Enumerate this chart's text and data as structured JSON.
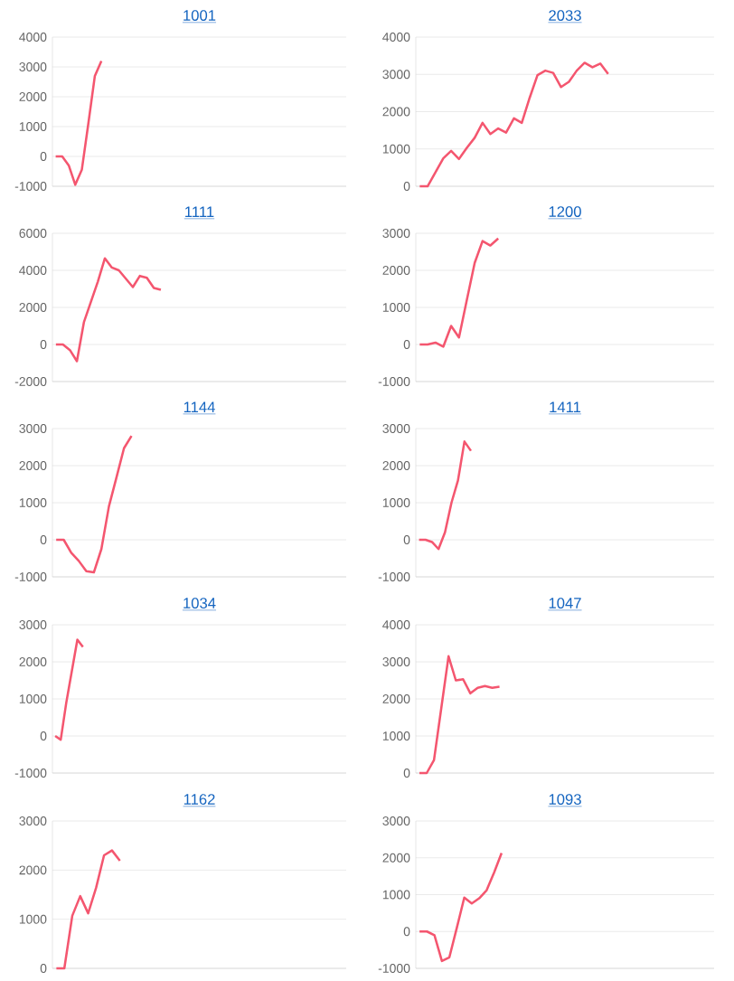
{
  "chart_data": [
    {
      "type": "line",
      "title": "1001",
      "grid": "y",
      "color": "#f4566f",
      "ylim": [
        -1000,
        4000
      ],
      "yticks": [
        -1000,
        0,
        1000,
        2000,
        3000,
        4000
      ],
      "categories": [
        null,
        null,
        null,
        null,
        null,
        null,
        null,
        null,
        null,
        null,
        null,
        null,
        null,
        null,
        null,
        null,
        null,
        null,
        null,
        null,
        null,
        null,
        null,
        null,
        null,
        null,
        null,
        null,
        null,
        null,
        null,
        null,
        null,
        null,
        null,
        null,
        null,
        null,
        null,
        null,
        null,
        null,
        null,
        null,
        null
      ],
      "values": [
        0,
        0,
        -300,
        -950,
        -450,
        1100,
        2700,
        3200,
        null,
        null,
        null,
        null,
        null,
        null,
        null,
        null,
        null,
        null,
        null,
        null,
        null,
        null,
        null,
        null,
        null,
        null,
        null,
        null,
        null,
        null,
        null,
        null,
        null,
        null,
        null,
        null,
        null,
        null,
        null,
        null,
        null,
        null,
        null,
        null,
        null
      ]
    },
    {
      "type": "line",
      "title": "2033",
      "grid": "y",
      "color": "#f4566f",
      "ylim": [
        0,
        4000
      ],
      "yticks": [
        0,
        1000,
        2000,
        3000,
        4000
      ],
      "categories": [
        null,
        null,
        null,
        null,
        null,
        null,
        null,
        null,
        null,
        null,
        null,
        null,
        null,
        null,
        null,
        null,
        null,
        null,
        null,
        null,
        null,
        null,
        null,
        null,
        null,
        null,
        null,
        null,
        null,
        null,
        null,
        null,
        null,
        null,
        null,
        null,
        null,
        null
      ],
      "values": [
        0,
        0,
        370,
        750,
        950,
        730,
        1030,
        1300,
        1700,
        1400,
        1550,
        1440,
        1820,
        1700,
        2370,
        2980,
        3100,
        3040,
        2660,
        2800,
        3100,
        3310,
        3190,
        3290,
        3010,
        null,
        null,
        null,
        null,
        null,
        null,
        null,
        null,
        null,
        null,
        null,
        null,
        null
      ]
    },
    {
      "type": "line",
      "title": "1111",
      "grid": "y",
      "color": "#f4566f",
      "ylim": [
        -2000,
        6000
      ],
      "yticks": [
        -2000,
        0,
        2000,
        4000,
        6000
      ],
      "categories": [
        null,
        null,
        null,
        null,
        null,
        null,
        null,
        null,
        null,
        null,
        null,
        null,
        null,
        null,
        null,
        null,
        null,
        null,
        null,
        null,
        null,
        null,
        null,
        null,
        null,
        null,
        null,
        null,
        null,
        null,
        null,
        null,
        null,
        null,
        null,
        null,
        null,
        null,
        null,
        null,
        null,
        null
      ],
      "values": [
        0,
        0,
        -300,
        -900,
        1200,
        2300,
        3400,
        4650,
        4150,
        4000,
        3550,
        3100,
        3700,
        3600,
        3050,
        2950,
        null,
        null,
        null,
        null,
        null,
        null,
        null,
        null,
        null,
        null,
        null,
        null,
        null,
        null,
        null,
        null,
        null,
        null,
        null,
        null,
        null,
        null,
        null,
        null,
        null,
        null
      ]
    },
    {
      "type": "line",
      "title": "1200",
      "grid": "y",
      "color": "#f4566f",
      "ylim": [
        -1000,
        3000
      ],
      "yticks": [
        -1000,
        0,
        1000,
        2000,
        3000
      ],
      "categories": [
        null,
        null,
        null,
        null,
        null,
        null,
        null,
        null,
        null,
        null,
        null,
        null,
        null,
        null,
        null,
        null,
        null,
        null,
        null,
        null,
        null,
        null,
        null,
        null,
        null,
        null,
        null,
        null,
        null,
        null,
        null,
        null,
        null,
        null,
        null,
        null,
        null,
        null
      ],
      "values": [
        0,
        0,
        50,
        -60,
        500,
        190,
        1200,
        2200,
        2790,
        2670,
        2860,
        null,
        null,
        null,
        null,
        null,
        null,
        null,
        null,
        null,
        null,
        null,
        null,
        null,
        null,
        null,
        null,
        null,
        null,
        null,
        null,
        null,
        null,
        null,
        null,
        null,
        null,
        null
      ]
    },
    {
      "type": "line",
      "title": "1144",
      "grid": "y",
      "color": "#f4566f",
      "ylim": [
        -1000,
        3000
      ],
      "yticks": [
        -1000,
        0,
        1000,
        2000,
        3000
      ],
      "categories": [
        null,
        null,
        null,
        null,
        null,
        null,
        null,
        null,
        null,
        null,
        null,
        null,
        null,
        null,
        null,
        null,
        null,
        null,
        null,
        null,
        null,
        null,
        null,
        null,
        null,
        null,
        null,
        null,
        null,
        null,
        null,
        null,
        null,
        null,
        null,
        null,
        null,
        null,
        null
      ],
      "values": [
        0,
        0,
        -350,
        -570,
        -850,
        -880,
        -250,
        900,
        1680,
        2470,
        2800,
        null,
        null,
        null,
        null,
        null,
        null,
        null,
        null,
        null,
        null,
        null,
        null,
        null,
        null,
        null,
        null,
        null,
        null,
        null,
        null,
        null,
        null,
        null,
        null,
        null,
        null,
        null,
        null
      ]
    },
    {
      "type": "line",
      "title": "1411",
      "grid": "y",
      "color": "#f4566f",
      "ylim": [
        -1000,
        3000
      ],
      "yticks": [
        -1000,
        0,
        1000,
        2000,
        3000
      ],
      "categories": [
        null,
        null,
        null,
        null,
        null,
        null,
        null,
        null,
        null,
        null,
        null,
        null,
        null,
        null,
        null,
        null,
        null,
        null,
        null,
        null,
        null,
        null,
        null,
        null,
        null,
        null,
        null,
        null,
        null,
        null,
        null,
        null,
        null,
        null,
        null,
        null,
        null,
        null,
        null,
        null,
        null,
        null,
        null,
        null,
        null,
        null
      ],
      "values": [
        0,
        0,
        -60,
        -250,
        200,
        1000,
        1600,
        2650,
        2400,
        null,
        null,
        null,
        null,
        null,
        null,
        null,
        null,
        null,
        null,
        null,
        null,
        null,
        null,
        null,
        null,
        null,
        null,
        null,
        null,
        null,
        null,
        null,
        null,
        null,
        null,
        null,
        null,
        null,
        null,
        null,
        null,
        null,
        null,
        null,
        null,
        null
      ]
    },
    {
      "type": "line",
      "title": "1034",
      "grid": "y",
      "color": "#f4566f",
      "ylim": [
        -1000,
        3000
      ],
      "yticks": [
        -1000,
        0,
        1000,
        2000,
        3000
      ],
      "categories": [
        null,
        null,
        null,
        null,
        null,
        null,
        null,
        null,
        null,
        null,
        null,
        null,
        null,
        null,
        null,
        null,
        null,
        null,
        null,
        null,
        null,
        null,
        null,
        null,
        null,
        null,
        null,
        null,
        null,
        null,
        null,
        null,
        null,
        null,
        null,
        null,
        null,
        null,
        null,
        null,
        null,
        null,
        null,
        null,
        null,
        null,
        null,
        null,
        null,
        null,
        null,
        null,
        null
      ],
      "values": [
        0,
        -100,
        900,
        1750,
        2600,
        2400,
        null,
        null,
        null,
        null,
        null,
        null,
        null,
        null,
        null,
        null,
        null,
        null,
        null,
        null,
        null,
        null,
        null,
        null,
        null,
        null,
        null,
        null,
        null,
        null,
        null,
        null,
        null,
        null,
        null,
        null,
        null,
        null,
        null,
        null,
        null,
        null,
        null,
        null,
        null,
        null,
        null,
        null,
        null,
        null,
        null,
        null,
        null
      ]
    },
    {
      "type": "line",
      "title": "1047",
      "grid": "y",
      "color": "#f4566f",
      "ylim": [
        0,
        4000
      ],
      "yticks": [
        0,
        1000,
        2000,
        3000,
        4000
      ],
      "categories": [
        null,
        null,
        null,
        null,
        null,
        null,
        null,
        null,
        null,
        null,
        null,
        null,
        null,
        null,
        null,
        null,
        null,
        null,
        null,
        null,
        null,
        null,
        null,
        null,
        null,
        null,
        null,
        null,
        null,
        null,
        null,
        null,
        null,
        null,
        null,
        null,
        null,
        null,
        null,
        null,
        null
      ],
      "values": [
        0,
        0,
        350,
        1750,
        3150,
        2500,
        2530,
        2150,
        2300,
        2350,
        2300,
        2330,
        null,
        null,
        null,
        null,
        null,
        null,
        null,
        null,
        null,
        null,
        null,
        null,
        null,
        null,
        null,
        null,
        null,
        null,
        null,
        null,
        null,
        null,
        null,
        null,
        null,
        null,
        null,
        null,
        null
      ]
    },
    {
      "type": "line",
      "title": "1162",
      "grid": "y",
      "color": "#f4566f",
      "ylim": [
        0,
        3000
      ],
      "yticks": [
        0,
        1000,
        2000,
        3000
      ],
      "categories": [
        null,
        null,
        null,
        null,
        null,
        null,
        null,
        null,
        null,
        null,
        null,
        null,
        null,
        null,
        null,
        null,
        null,
        null,
        null,
        null,
        null,
        null,
        null,
        null,
        null,
        null,
        null,
        null,
        null,
        null,
        null,
        null,
        null,
        null,
        null,
        null,
        null
      ],
      "values": [
        0,
        0,
        1070,
        1470,
        1120,
        1640,
        2300,
        2400,
        2190,
        null,
        null,
        null,
        null,
        null,
        null,
        null,
        null,
        null,
        null,
        null,
        null,
        null,
        null,
        null,
        null,
        null,
        null,
        null,
        null,
        null,
        null,
        null,
        null,
        null,
        null,
        null,
        null
      ]
    },
    {
      "type": "line",
      "title": "1093",
      "grid": "y",
      "color": "#f4566f",
      "ylim": [
        -1000,
        3000
      ],
      "yticks": [
        -1000,
        0,
        1000,
        2000,
        3000
      ],
      "categories": [
        null,
        null,
        null,
        null,
        null,
        null,
        null,
        null,
        null,
        null,
        null,
        null,
        null,
        null,
        null,
        null,
        null,
        null,
        null,
        null,
        null,
        null,
        null,
        null,
        null,
        null,
        null,
        null,
        null,
        null,
        null,
        null,
        null,
        null,
        null,
        null,
        null,
        null,
        null,
        null
      ],
      "values": [
        0,
        0,
        -100,
        -800,
        -700,
        100,
        920,
        760,
        900,
        1120,
        1600,
        2130,
        null,
        null,
        null,
        null,
        null,
        null,
        null,
        null,
        null,
        null,
        null,
        null,
        null,
        null,
        null,
        null,
        null,
        null,
        null,
        null,
        null,
        null,
        null,
        null,
        null,
        null,
        null,
        null
      ]
    }
  ]
}
